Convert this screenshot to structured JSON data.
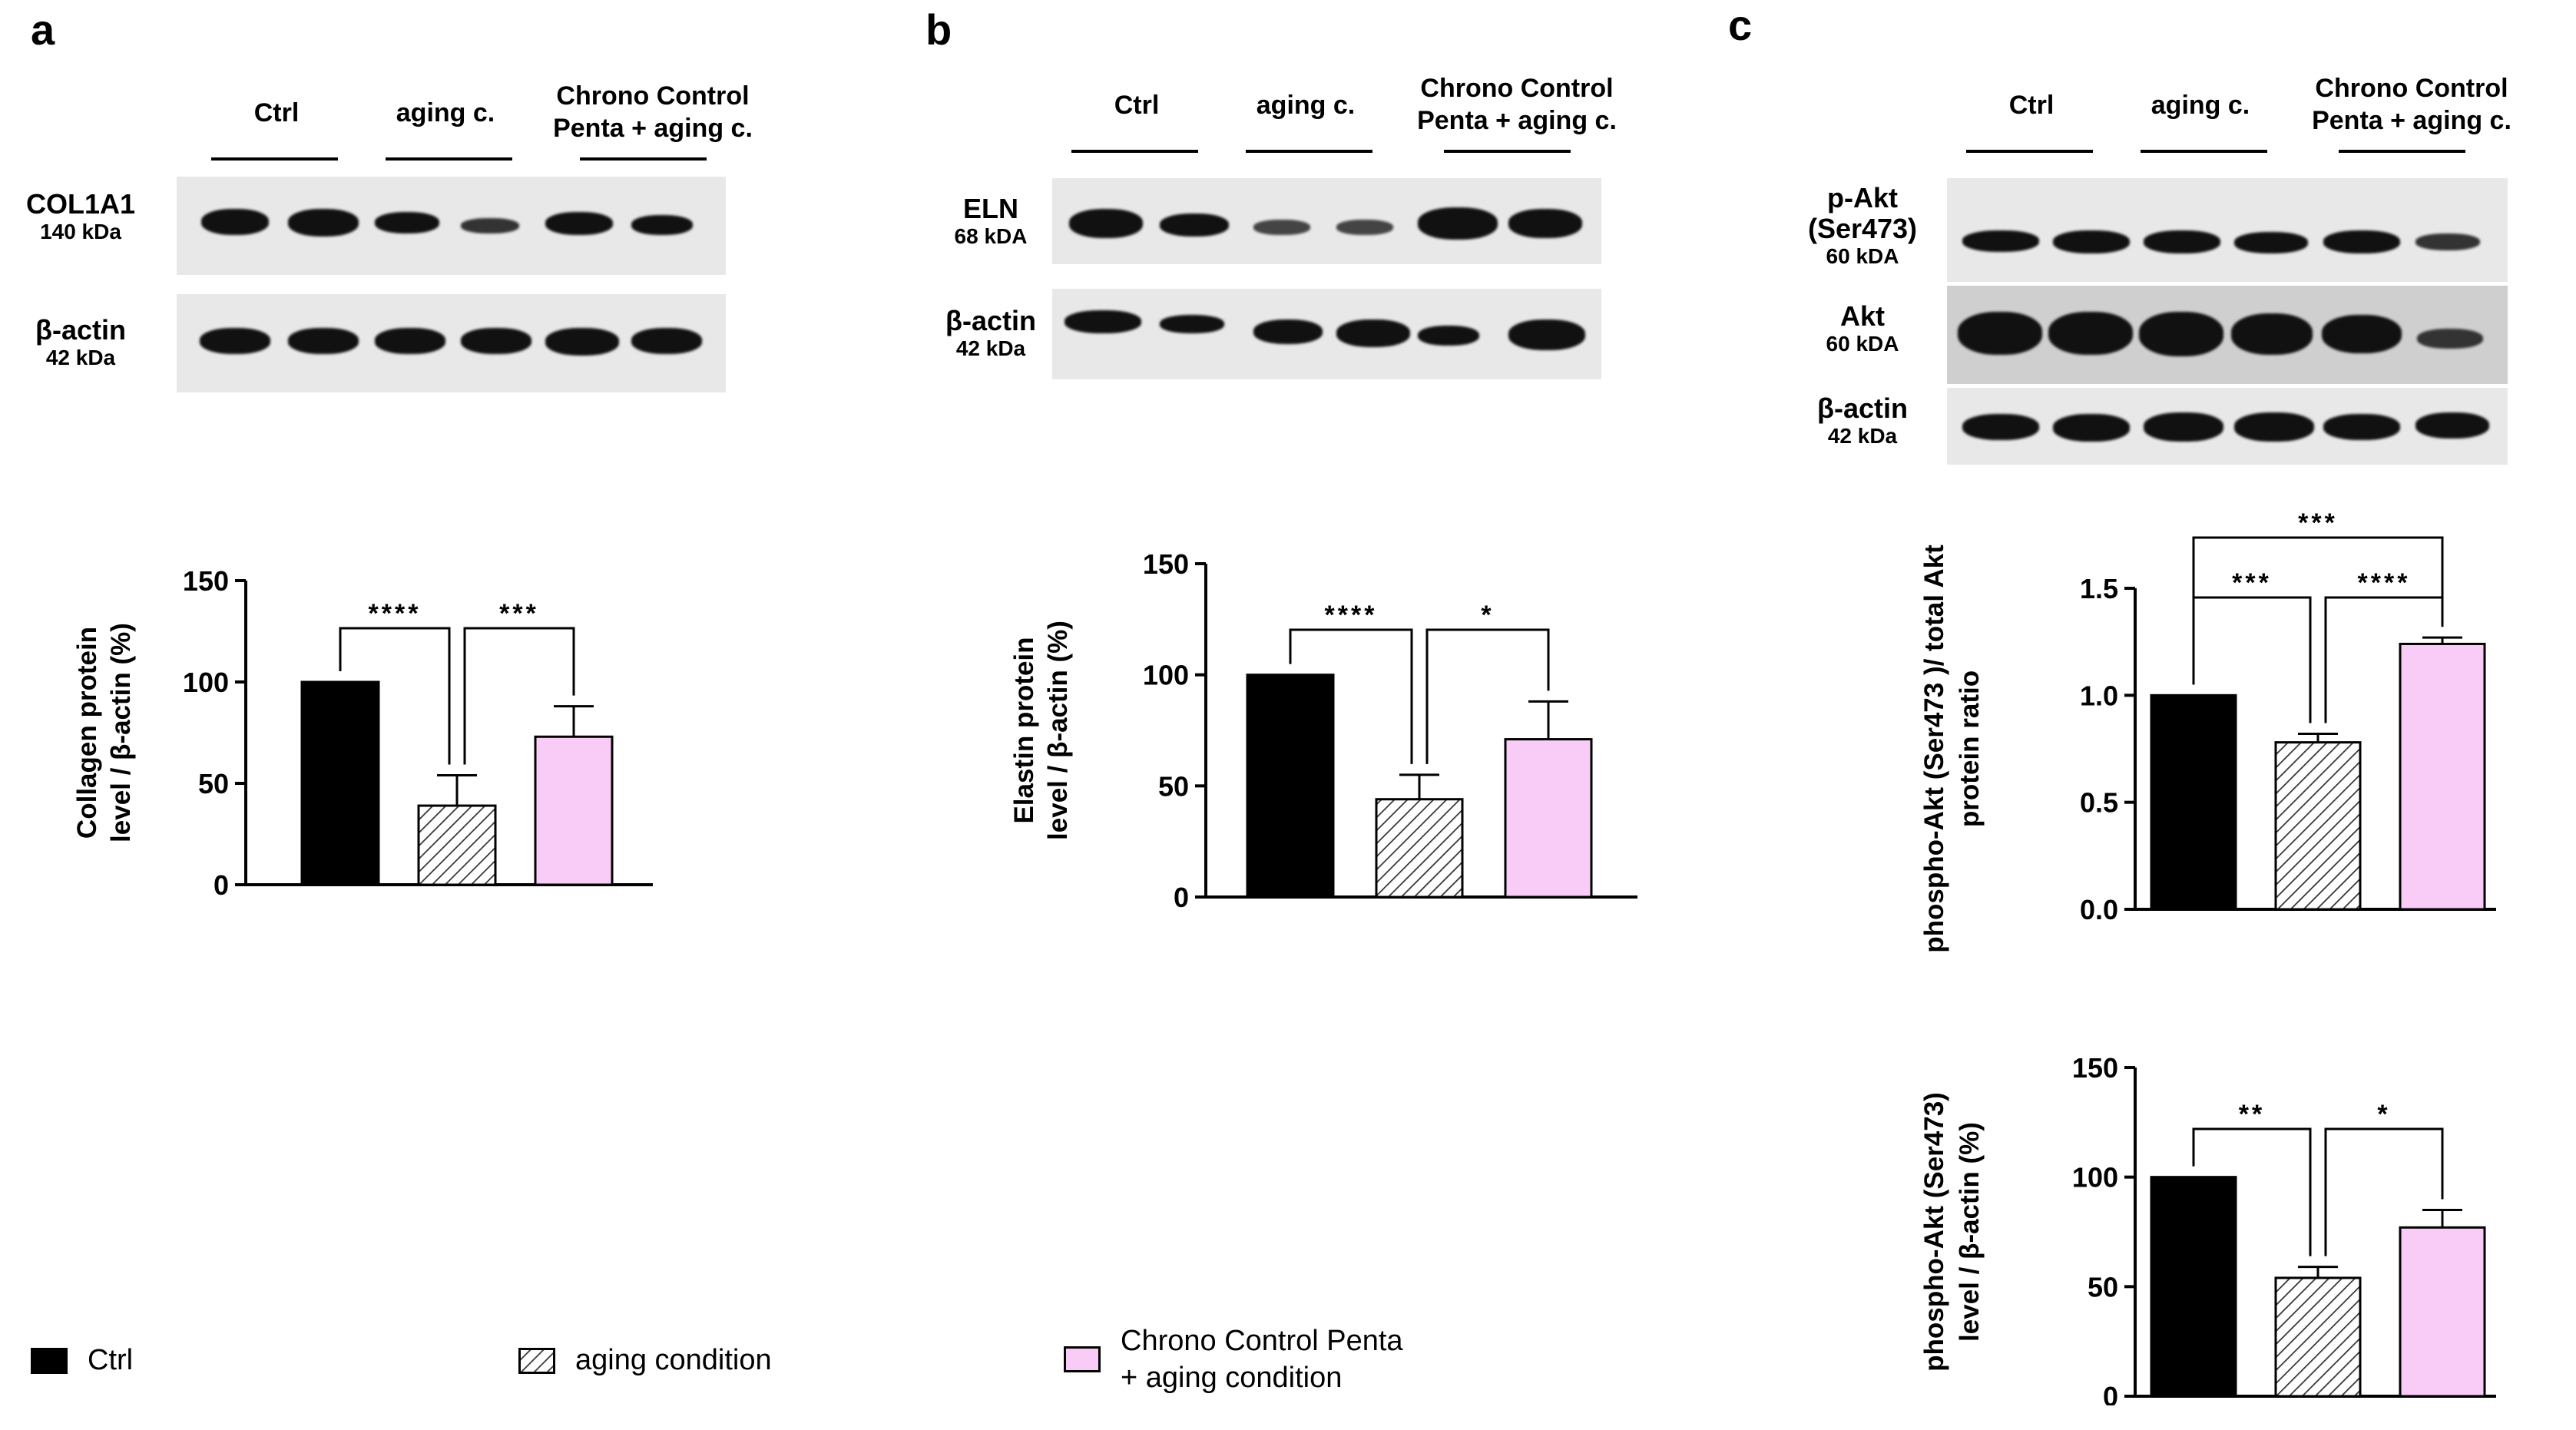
{
  "panels": {
    "a": "a",
    "b": "b",
    "c": "c"
  },
  "groups": {
    "ctrl": "Ctrl",
    "aging": "aging c.",
    "chrono_line1": "Chrono Control",
    "chrono_line2": "Penta + aging c."
  },
  "blots": {
    "col1a1": {
      "name": "COL1A1",
      "kda": "140 kDa"
    },
    "actin_a": {
      "name": "β-actin",
      "kda": "42 kDa"
    },
    "eln": {
      "name": "ELN",
      "kda": "68 kDA"
    },
    "actin_b": {
      "name": "β-actin",
      "kda": "42 kDa"
    },
    "pakt": {
      "name1": "p-Akt",
      "name2": "(Ser473)",
      "kda": "60 kDA"
    },
    "akt": {
      "name": "Akt",
      "kda": "60 kDA"
    },
    "actin_c": {
      "name": "β-actin",
      "kda": "42 kDa"
    }
  },
  "legend": {
    "ctrl": "Ctrl",
    "aging": "aging condition",
    "chrono_line1": "Chrono Control Penta",
    "chrono_line2": "+ aging condition"
  },
  "colors": {
    "ctrl": "#000000",
    "aging": "#d9d9d9",
    "chrono": "#f8ccf6"
  },
  "chart_data": [
    {
      "type": "bar",
      "panel": "a",
      "ylabel_line1": "Collagen protein",
      "ylabel_line2": "level / β-actin (%)",
      "categories": [
        "Ctrl",
        "aging condition",
        "Chrono Control Penta + aging condition"
      ],
      "values": [
        100,
        39,
        73
      ],
      "errors": [
        0,
        15,
        15
      ],
      "ylim": [
        0,
        150
      ],
      "yticks": [
        0,
        50,
        100,
        150
      ],
      "significance": [
        {
          "from": 0,
          "to": 1,
          "label": "****",
          "level": 1
        },
        {
          "from": 1,
          "to": 2,
          "label": "***",
          "level": 1
        }
      ]
    },
    {
      "type": "bar",
      "panel": "b",
      "ylabel_line1": "Elastin protein",
      "ylabel_line2": "level / β-actin (%)",
      "categories": [
        "Ctrl",
        "aging condition",
        "Chrono Control Penta + aging condition"
      ],
      "values": [
        100,
        44,
        71
      ],
      "errors": [
        0,
        11,
        17
      ],
      "ylim": [
        0,
        150
      ],
      "yticks": [
        0,
        50,
        100,
        150
      ],
      "significance": [
        {
          "from": 0,
          "to": 1,
          "label": "****",
          "level": 1
        },
        {
          "from": 1,
          "to": 2,
          "label": "*",
          "level": 1
        }
      ]
    },
    {
      "type": "bar",
      "panel": "c1",
      "ylabel_line1": "phospho-Akt (Ser473 )/ total Akt",
      "ylabel_line2": "protein ratio",
      "categories": [
        "Ctrl",
        "aging condition",
        "Chrono Control Penta + aging condition"
      ],
      "values": [
        1.0,
        0.78,
        1.24
      ],
      "errors": [
        0,
        0.04,
        0.03
      ],
      "ylim": [
        0,
        1.5
      ],
      "yticks": [
        "0.0",
        "0.5",
        "1.0",
        "1.5"
      ],
      "significance": [
        {
          "from": 0,
          "to": 1,
          "label": "***",
          "level": 1
        },
        {
          "from": 1,
          "to": 2,
          "label": "****",
          "level": 1
        },
        {
          "from": 0,
          "to": 2,
          "label": "***",
          "level": 2
        }
      ]
    },
    {
      "type": "bar",
      "panel": "c2",
      "ylabel_line1": "phospho-Akt (Ser473)",
      "ylabel_line2": "level / β-actin (%)",
      "categories": [
        "Ctrl",
        "aging condition",
        "Chrono Control Penta + aging condition"
      ],
      "values": [
        100,
        54,
        77
      ],
      "errors": [
        0,
        5,
        8
      ],
      "ylim": [
        0,
        150
      ],
      "yticks": [
        0,
        50,
        100,
        150
      ],
      "significance": [
        {
          "from": 0,
          "to": 1,
          "label": "**",
          "level": 1
        },
        {
          "from": 1,
          "to": 2,
          "label": "*",
          "level": 1
        }
      ]
    }
  ]
}
